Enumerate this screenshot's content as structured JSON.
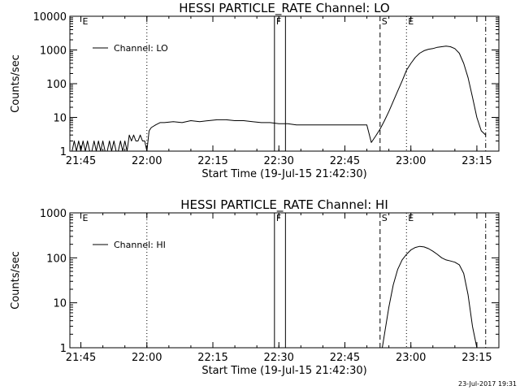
{
  "chart_data": [
    {
      "type": "line",
      "title": "HESSI PARTICLE_RATE Channel: LO",
      "xlabel": "Start Time (19-Jul-15 21:42:30)",
      "ylabel": "Counts/sec",
      "y_scale": "log",
      "ylim": [
        1,
        10000
      ],
      "xlim": [
        "21:42:30",
        "23:20:00"
      ],
      "xticks": [
        "21:45",
        "22:00",
        "22:15",
        "22:30",
        "22:45",
        "23:00",
        "23:15"
      ],
      "yticks": [
        "1",
        "10",
        "100",
        "1000",
        "10000"
      ],
      "legend": {
        "placement": "top-left",
        "entries": [
          "Channel: LO"
        ]
      },
      "markers": [
        {
          "label": "E",
          "time": "21:45",
          "style": "none"
        },
        {
          "label": "",
          "time": "22:00",
          "style": "dotted"
        },
        {
          "label": "F",
          "time": "22:29",
          "style": "solid"
        },
        {
          "label": "",
          "time": "22:31:30",
          "style": "solid"
        },
        {
          "label": "S",
          "time": "22:53",
          "style": "dashed"
        },
        {
          "label": "E",
          "time": "22:59",
          "style": "dotted"
        },
        {
          "label": "",
          "time": "23:17",
          "style": "dashdot"
        }
      ],
      "series": [
        {
          "name": "Channel: LO",
          "x": [
            "21:43",
            "21:43:30",
            "21:44",
            "21:44:30",
            "21:45",
            "21:45:30",
            "21:46",
            "21:46:30",
            "21:47",
            "21:47:30",
            "21:48",
            "21:48:30",
            "21:49",
            "21:49:30",
            "21:50",
            "21:50:30",
            "21:51",
            "21:51:30",
            "21:52",
            "21:52:30",
            "21:53",
            "21:53:30",
            "21:54",
            "21:54:30",
            "21:55",
            "21:55:30",
            "21:56",
            "21:56:30",
            "21:57",
            "21:57:30",
            "21:58",
            "21:58:30",
            "21:59",
            "21:59:30",
            "22:00",
            "22:00:30",
            "22:01",
            "22:02",
            "22:03",
            "22:04",
            "22:06",
            "22:08",
            "22:10",
            "22:12",
            "22:14",
            "22:16",
            "22:18",
            "22:20",
            "22:22",
            "22:24",
            "22:26",
            "22:28",
            "22:30",
            "22:32",
            "22:34",
            "22:36",
            "22:38",
            "22:40",
            "22:42",
            "22:44",
            "22:46",
            "22:48",
            "22:49",
            "22:50",
            "22:51",
            "22:52",
            "22:53",
            "22:54",
            "22:55",
            "22:56",
            "22:57",
            "22:58",
            "22:59",
            "23:00",
            "23:01",
            "23:02",
            "23:03",
            "23:04",
            "23:05",
            "23:06",
            "23:07",
            "23:08",
            "23:09",
            "23:10",
            "23:11",
            "23:12",
            "23:13",
            "23:14",
            "23:15",
            "23:16",
            "23:17"
          ],
          "y": [
            1,
            2,
            1,
            2,
            1,
            2,
            1,
            2,
            1,
            1,
            2,
            1,
            2,
            1,
            2,
            1,
            1,
            2,
            1,
            2,
            1,
            1,
            2,
            1,
            2,
            1,
            3,
            2,
            3,
            2,
            2,
            3,
            2,
            2,
            1,
            4,
            5,
            6,
            7,
            7,
            7.5,
            7,
            8,
            7.5,
            8,
            8.5,
            8.5,
            8,
            8,
            7.5,
            7,
            7,
            6.5,
            6.5,
            6,
            6,
            6,
            6,
            6,
            6,
            6,
            6,
            6,
            6,
            1.8,
            2.8,
            4.5,
            8,
            15,
            30,
            60,
            120,
            250,
            400,
            600,
            800,
            950,
            1050,
            1100,
            1200,
            1250,
            1300,
            1250,
            1100,
            800,
            400,
            150,
            40,
            10,
            4,
            3
          ]
        }
      ]
    },
    {
      "type": "line",
      "title": "HESSI PARTICLE_RATE Channel: HI",
      "xlabel": "Start Time (19-Jul-15 21:42:30)",
      "ylabel": "Counts/sec",
      "y_scale": "log",
      "ylim": [
        1,
        1000
      ],
      "xlim": [
        "21:42:30",
        "23:20:00"
      ],
      "xticks": [
        "21:45",
        "22:00",
        "22:15",
        "22:30",
        "22:45",
        "23:00",
        "23:15"
      ],
      "yticks": [
        "1",
        "10",
        "100",
        "1000"
      ],
      "legend": {
        "placement": "top-left",
        "entries": [
          "Channel: HI"
        ]
      },
      "markers": [
        {
          "label": "E",
          "time": "21:45",
          "style": "none"
        },
        {
          "label": "",
          "time": "22:00",
          "style": "dotted"
        },
        {
          "label": "F",
          "time": "22:29",
          "style": "solid"
        },
        {
          "label": "",
          "time": "22:31:30",
          "style": "solid"
        },
        {
          "label": "S",
          "time": "22:53",
          "style": "dashed"
        },
        {
          "label": "E",
          "time": "22:59",
          "style": "dotted"
        },
        {
          "label": "",
          "time": "23:17",
          "style": "dashdot"
        }
      ],
      "series": [
        {
          "name": "Channel: HI",
          "x": [
            "22:53:30",
            "22:54",
            "22:55",
            "22:56",
            "22:57",
            "22:58",
            "22:59",
            "23:00",
            "23:01",
            "23:02",
            "23:03",
            "23:04",
            "23:05",
            "23:06",
            "23:07",
            "23:08",
            "23:09",
            "23:10",
            "23:11",
            "23:12",
            "23:13",
            "23:14",
            "23:15"
          ],
          "y": [
            1,
            2,
            8,
            25,
            55,
            90,
            120,
            150,
            170,
            180,
            175,
            160,
            140,
            120,
            100,
            90,
            85,
            80,
            70,
            45,
            15,
            3,
            1
          ]
        }
      ]
    }
  ],
  "footer": {
    "timestamp": "23-Jul-2017 19:31"
  }
}
